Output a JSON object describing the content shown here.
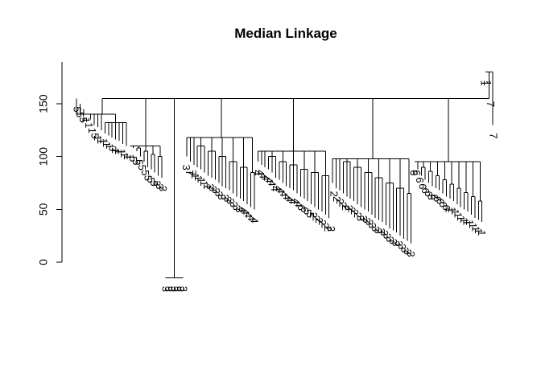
{
  "chart_data": {
    "type": "dendrogram",
    "title": "Median Linkage",
    "xlabel": "",
    "ylabel": "",
    "ylim": [
      0,
      180
    ],
    "y_ticks": [
      0,
      50,
      100,
      150
    ],
    "y_tick_labels": [
      "0",
      "50",
      "100",
      "150"
    ],
    "grid": false,
    "root_height": 155,
    "top_level_merges": [
      {
        "heights": [
          140,
          132
        ],
        "approx_leaf_heights": [
          155,
          150,
          145,
          140,
          135,
          130,
          128,
          125,
          122,
          120,
          118,
          116,
          115,
          112,
          110
        ]
      },
      {
        "heights": [
          110,
          108,
          105,
          102,
          100
        ],
        "approx_leaf_heights": [
          110,
          108,
          105,
          100,
          95,
          90,
          88,
          85,
          82,
          80
        ]
      },
      {
        "heights": [
          -15,
          -15,
          -15,
          -15
        ],
        "approx_leaf_heights": [
          -15,
          -15,
          -15,
          -15,
          -15,
          -15
        ]
      },
      {
        "heights": [
          118,
          110,
          105,
          100,
          95,
          90,
          85,
          82,
          80
        ],
        "approx_leaf_heights": [
          100,
          95,
          92,
          90,
          88,
          85,
          82,
          80,
          78,
          75,
          72,
          70,
          68,
          65,
          62,
          60,
          58,
          55,
          52,
          50
        ]
      },
      {
        "heights": [
          105,
          100,
          95,
          92,
          88,
          85,
          82
        ],
        "approx_leaf_heights": [
          95,
          92,
          90,
          88,
          85,
          80,
          78,
          75,
          72,
          70,
          68,
          65,
          62,
          60,
          58,
          55,
          52,
          50,
          48,
          45,
          42
        ]
      },
      {
        "heights": [
          98,
          95,
          90,
          85,
          80,
          75,
          70,
          65,
          60,
          55,
          50
        ],
        "approx_leaf_heights": [
          75,
          70,
          68,
          65,
          62,
          60,
          58,
          55,
          52,
          50,
          48,
          45,
          42,
          40,
          38,
          35,
          32,
          30,
          28,
          25,
          22,
          20,
          18
        ]
      },
      {
        "heights": [
          95,
          90,
          86,
          82,
          78,
          74,
          70,
          66,
          62,
          58
        ],
        "approx_leaf_heights": [
          95,
          88,
          82,
          78,
          75,
          72,
          70,
          68,
          65,
          62,
          60,
          58,
          55,
          52,
          50,
          48,
          45,
          42,
          40,
          38
        ]
      },
      {
        "heights": [
          180,
          155,
          130
        ],
        "approx_leaf_heights": [
          180,
          160,
          130
        ]
      }
    ],
    "leaf_labels": [
      "5",
      "5",
      "5",
      "1",
      "1",
      "1",
      "5",
      "1",
      "1",
      "1",
      "1",
      "1",
      "3",
      "1",
      "1",
      "1",
      "1",
      "1",
      "1",
      "5",
      "5",
      "5",
      "5",
      "5",
      "5",
      "5",
      "5",
      "3",
      "3",
      "3",
      "3",
      "3",
      "3",
      "3",
      "3",
      "3",
      "3",
      "3",
      "7",
      "7",
      "1",
      "1",
      "1",
      "1",
      "1",
      "3",
      "3",
      "3",
      "3",
      "3",
      "3",
      "3",
      "3",
      "3",
      "3",
      "3",
      "4",
      "4",
      "4",
      "4",
      "4",
      "4",
      "4",
      "4",
      "4",
      "4",
      "4",
      "4",
      "4",
      "4",
      "4",
      "4",
      "4",
      "4",
      "4",
      "4",
      "6",
      "6",
      "5",
      "5",
      "2",
      "2",
      "2",
      "2",
      "2",
      "2",
      "2",
      "2",
      "2",
      "2",
      "2",
      "2",
      "2",
      "2",
      "2",
      "2",
      "3",
      "3",
      "3",
      "3",
      "3",
      "3",
      "3",
      "3",
      "3",
      "3",
      "3",
      "3",
      "3",
      "3",
      "3",
      "3",
      "3",
      "3",
      "6",
      "6",
      "6",
      "6",
      "6",
      "6",
      "6",
      "6",
      "6",
      "6",
      "6",
      "6",
      "1",
      "1",
      "1",
      "1",
      "1",
      "1",
      "1",
      "1",
      "1",
      "1",
      "1",
      "1",
      "1",
      "1",
      "7",
      "7"
    ]
  }
}
